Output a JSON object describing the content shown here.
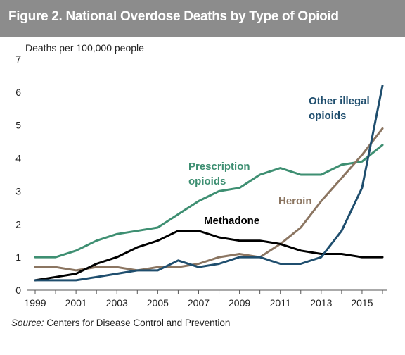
{
  "chart_data": {
    "type": "line",
    "title": "Figure 2. National Overdose Deaths by Type of Opioid",
    "ylabel": "Deaths per 100,000 people",
    "ylim": [
      0,
      7
    ],
    "yticks": [
      "0",
      "1",
      "2",
      "3",
      "4",
      "5",
      "6",
      "7"
    ],
    "x": [
      1999,
      2000,
      2001,
      2002,
      2003,
      2004,
      2005,
      2006,
      2007,
      2008,
      2009,
      2010,
      2011,
      2012,
      2013,
      2014,
      2015,
      2016
    ],
    "xticks": [
      "1999",
      "2001",
      "2003",
      "2005",
      "2007",
      "2009",
      "2011",
      "2013",
      "2015"
    ],
    "series": [
      {
        "name": "Prescription opioids",
        "label_lines": [
          "Prescription",
          "opioids"
        ],
        "color": "#3e8f72",
        "values": [
          1.0,
          1.0,
          1.2,
          1.5,
          1.7,
          1.8,
          1.9,
          2.3,
          2.7,
          3.0,
          3.1,
          3.5,
          3.7,
          3.5,
          3.5,
          3.8,
          3.9,
          4.4
        ]
      },
      {
        "name": "Heroin",
        "label_lines": [
          "Heroin"
        ],
        "color": "#8b7561",
        "values": [
          0.7,
          0.7,
          0.6,
          0.7,
          0.7,
          0.6,
          0.7,
          0.7,
          0.8,
          1.0,
          1.1,
          1.0,
          1.4,
          1.9,
          2.7,
          3.4,
          4.1,
          4.9
        ]
      },
      {
        "name": "Methadone",
        "label_lines": [
          "Methadone"
        ],
        "color": "#000000",
        "values": [
          0.3,
          0.4,
          0.5,
          0.8,
          1.0,
          1.3,
          1.5,
          1.8,
          1.8,
          1.6,
          1.5,
          1.5,
          1.4,
          1.2,
          1.1,
          1.1,
          1.0,
          1.0
        ]
      },
      {
        "name": "Other illegal opioids",
        "label_lines": [
          "Other illegal",
          "opioids"
        ],
        "color": "#1f4e6e",
        "values": [
          0.3,
          0.3,
          0.3,
          0.4,
          0.5,
          0.6,
          0.6,
          0.9,
          0.7,
          0.8,
          1.0,
          1.0,
          0.8,
          0.8,
          1.0,
          1.8,
          3.1,
          6.2
        ]
      }
    ],
    "grid": false,
    "legend": "inline labels"
  },
  "source": {
    "prefix": "Source:",
    "text": " Centers for Disease Control and Prevention"
  }
}
